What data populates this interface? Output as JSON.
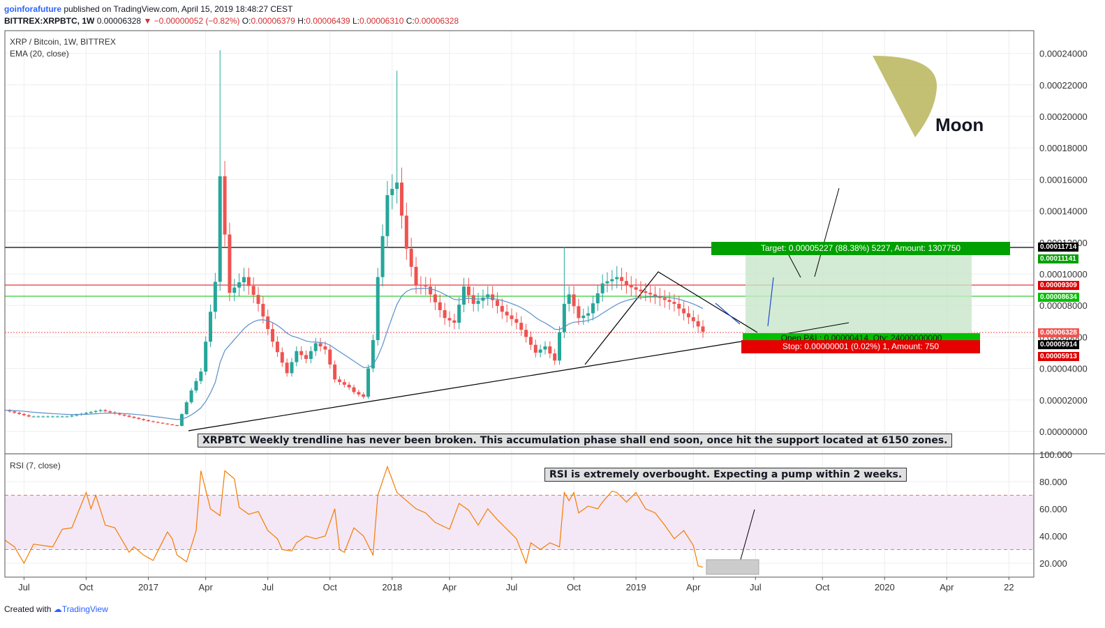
{
  "header": {
    "author": "goinforafuture",
    "published": " published on TradingView.com, April 15, 2019 18:48:27 CEST",
    "symbol": "BITTREX:XRPBTC, 1W",
    "last": "0.00006328",
    "change": "−0.00000052 (−0.82%)",
    "o_label": "O:",
    "o": "0.00006379",
    "h_label": "H:",
    "h": "0.00006439",
    "l_label": "L:",
    "l": "0.00006310",
    "c_label": "C:",
    "c": "0.00006328"
  },
  "pane_labels": {
    "main": "XRP / Bitcoin, 1W, BITTREX",
    "ema": "EMA (20, close)",
    "rsi": "RSI (7, close)"
  },
  "annotations": {
    "moon": "Moon",
    "trendline_note": "XRPBTC Weekly trendline has never been broken. This accumulation phase shall end soon, once hit the support located at 6150 zones.",
    "rsi_note": "RSI is extremely overbought. Expecting a pump within 2 weeks.",
    "target": "Target: 0.00005227 (88.38%) 5227, Amount: 1307750",
    "open_pl": "Open P&L: 0.00000414, Qty: 24000000000",
    "stop": "Stop: 0.00000001 (0.02%) 1, Amount: 750"
  },
  "price_labels": [
    {
      "text": "0.00011714",
      "color": "#000000"
    },
    {
      "text": "0.00011141",
      "color": "#00a000"
    },
    {
      "text": "0.00009309",
      "color": "#e00000"
    },
    {
      "text": "0.00008634",
      "color": "#00c000"
    },
    {
      "text": "0.00006328",
      "color": "#ef5350"
    },
    {
      "text": "0.00005914",
      "color": "#000000"
    },
    {
      "text": "0.00005913",
      "color": "#e00000"
    }
  ],
  "footer": {
    "created": "Created with ",
    "brand": "TradingView"
  },
  "colors": {
    "up": "#26a69a",
    "down": "#ef5350",
    "ema": "#5b8fc9",
    "rsi": "#f57c00",
    "target": "#00a000",
    "stop": "#e60000"
  },
  "chart_data": [
    {
      "type": "candlestick",
      "title": "XRP / Bitcoin, 1W, BITTREX",
      "ylim": [
        0,
        0.00025
      ],
      "yticks": [
        "0.00000000",
        "0.00002000",
        "0.00004000",
        "0.00006000",
        "0.00008000",
        "0.00010000",
        "0.00012000",
        "0.00014000",
        "0.00016000",
        "0.00018000",
        "0.00020000",
        "0.00022000",
        "0.00024000"
      ],
      "xticks": [
        "Jul",
        "Oct",
        "2017",
        "Apr",
        "Jul",
        "Oct",
        "2018",
        "Apr",
        "Jul",
        "Oct",
        "2019",
        "Apr",
        "Jul",
        "Oct",
        "2020",
        "Apr",
        "22"
      ],
      "xtick_weeks": [
        4,
        17,
        30,
        42,
        55,
        68,
        81,
        93,
        106,
        119,
        132,
        144,
        157,
        171,
        184,
        197,
        210
      ],
      "weeks_per_px": 0.146,
      "last_data_week": 146,
      "series_close_keypoints": [
        [
          0,
          1.35e-05
        ],
        [
          5,
          9.5e-06
        ],
        [
          13,
          9.5e-06
        ],
        [
          20,
          1.35e-05
        ],
        [
          30,
          6.5e-06
        ],
        [
          36,
          3.5e-06
        ],
        [
          39,
          2.6e-05
        ],
        [
          41,
          3.8e-05
        ],
        [
          44,
          9.5e-05
        ],
        [
          45,
          0.000162
        ],
        [
          47,
          8.8e-05
        ],
        [
          50,
          9.8e-05
        ],
        [
          53,
          8.1e-05
        ],
        [
          56,
          5.7e-05
        ],
        [
          59,
          3.7e-05
        ],
        [
          61,
          5.1e-05
        ],
        [
          63,
          4.6e-05
        ],
        [
          65,
          5.6e-05
        ],
        [
          67,
          5.2e-05
        ],
        [
          69,
          3.3e-05
        ],
        [
          72,
          2.8e-05
        ],
        [
          73,
          2.5e-05
        ],
        [
          75,
          2.2e-05
        ],
        [
          77,
          5.8e-05
        ],
        [
          78,
          9.8e-05
        ],
        [
          80,
          0.00015
        ],
        [
          82,
          0.000158
        ],
        [
          84,
          0.000116
        ],
        [
          86,
          9.3e-05
        ],
        [
          88,
          9.2e-05
        ],
        [
          90,
          8.2e-05
        ],
        [
          92,
          7.2e-05
        ],
        [
          94,
          6.9e-05
        ],
        [
          96,
          9.2e-05
        ],
        [
          98,
          8.1e-05
        ],
        [
          101,
          8.7e-05
        ],
        [
          104,
          7.6e-05
        ],
        [
          107,
          6.9e-05
        ],
        [
          109,
          6e-05
        ],
        [
          111,
          5e-05
        ],
        [
          113,
          5.4e-05
        ],
        [
          115,
          4.5e-05
        ],
        [
          117,
          8.1e-05
        ],
        [
          118,
          8.7e-05
        ],
        [
          120,
          7.2e-05
        ],
        [
          122,
          7.5e-05
        ],
        [
          125,
          9.4e-05
        ],
        [
          128,
          9.8e-05
        ],
        [
          130,
          9.3e-05
        ],
        [
          132,
          9e-05
        ],
        [
          136,
          8.6e-05
        ],
        [
          140,
          8.1e-05
        ],
        [
          142,
          7.5e-05
        ],
        [
          144,
          7e-05
        ],
        [
          146,
          6.33e-05
        ]
      ],
      "spikes": [
        {
          "week": 45,
          "high": 0.000242
        },
        {
          "week": 82,
          "high": 0.000229
        },
        {
          "week": 117,
          "high": 0.000117
        },
        {
          "week": 128,
          "high": 0.000105
        }
      ],
      "ema": {
        "name": "EMA (20, close)",
        "period": 20
      }
    },
    {
      "type": "line",
      "title": "RSI (7, close)",
      "ylim": [
        10,
        100
      ],
      "yticks": [
        "20.000",
        "40.000",
        "60.000",
        "80.000",
        "100.000"
      ],
      "bands": [
        30,
        70
      ],
      "values_keypoints": [
        [
          0,
          37
        ],
        [
          2,
          32
        ],
        [
          4,
          20
        ],
        [
          6,
          34
        ],
        [
          8,
          33
        ],
        [
          10,
          32
        ],
        [
          12,
          45
        ],
        [
          14,
          46
        ],
        [
          17,
          72
        ],
        [
          18,
          60
        ],
        [
          19,
          70
        ],
        [
          21,
          48
        ],
        [
          23,
          46
        ],
        [
          26,
          28
        ],
        [
          27,
          32
        ],
        [
          29,
          26
        ],
        [
          31,
          22
        ],
        [
          33,
          36
        ],
        [
          34,
          43
        ],
        [
          35,
          38
        ],
        [
          36,
          26
        ],
        [
          38,
          21
        ],
        [
          40,
          44
        ],
        [
          41,
          88
        ],
        [
          43,
          60
        ],
        [
          45,
          55
        ],
        [
          46,
          88
        ],
        [
          48,
          82
        ],
        [
          49,
          61
        ],
        [
          51,
          56
        ],
        [
          53,
          58
        ],
        [
          55,
          44
        ],
        [
          57,
          38
        ],
        [
          58,
          30
        ],
        [
          60,
          29
        ],
        [
          61,
          35
        ],
        [
          63,
          40
        ],
        [
          65,
          38
        ],
        [
          67,
          40
        ],
        [
          69,
          60
        ],
        [
          70,
          30
        ],
        [
          71,
          28
        ],
        [
          73,
          46
        ],
        [
          75,
          40
        ],
        [
          77,
          26
        ],
        [
          78,
          70
        ],
        [
          80,
          91
        ],
        [
          82,
          72
        ],
        [
          84,
          66
        ],
        [
          86,
          60
        ],
        [
          88,
          57
        ],
        [
          90,
          50
        ],
        [
          93,
          45
        ],
        [
          95,
          64
        ],
        [
          97,
          59
        ],
        [
          99,
          48
        ],
        [
          101,
          60
        ],
        [
          103,
          52
        ],
        [
          105,
          45
        ],
        [
          107,
          38
        ],
        [
          109,
          20
        ],
        [
          110,
          35
        ],
        [
          112,
          30
        ],
        [
          114,
          35
        ],
        [
          116,
          32
        ],
        [
          117,
          72
        ],
        [
          118,
          66
        ],
        [
          119,
          72
        ],
        [
          120,
          57
        ],
        [
          122,
          62
        ],
        [
          124,
          60
        ],
        [
          125,
          65
        ],
        [
          127,
          73
        ],
        [
          128,
          72
        ],
        [
          130,
          65
        ],
        [
          132,
          72
        ],
        [
          134,
          60
        ],
        [
          136,
          57
        ],
        [
          138,
          48
        ],
        [
          140,
          38
        ],
        [
          142,
          44
        ],
        [
          144,
          33
        ],
        [
          145,
          18
        ],
        [
          146,
          17
        ]
      ]
    }
  ]
}
